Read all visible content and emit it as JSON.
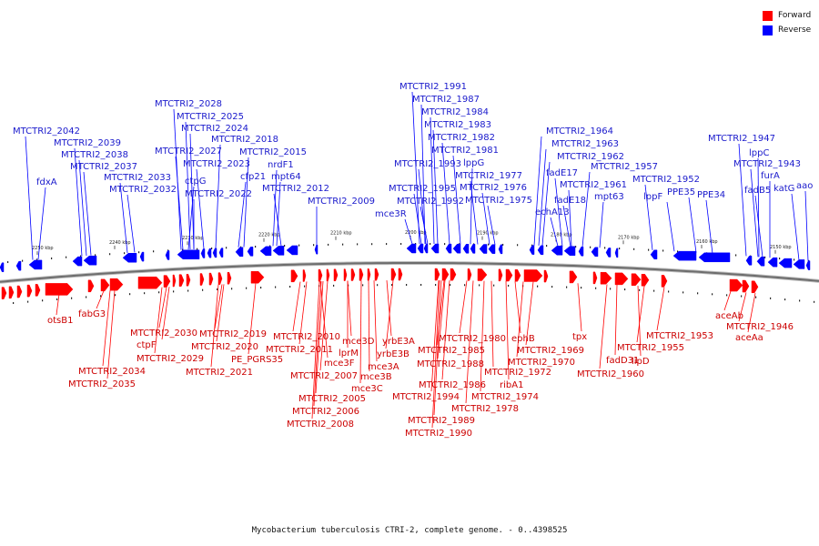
{
  "legend": {
    "forward": {
      "label": "Forward",
      "color": "#ff0000"
    },
    "reverse": {
      "label": "Reverse",
      "color": "#0000ff"
    }
  },
  "caption": "Mycobacterium tuberculosis CTRI-2, complete genome. - 0..4398525",
  "ticks": [
    "2250 kbp",
    "2240 kbp",
    "2230 kbp",
    "2220 kbp",
    "2210 kbp",
    "2200 kbp",
    "2190 kbp",
    "2180 kbp",
    "2170 kbp",
    "2160 kbp",
    "2150 kbp"
  ],
  "reverse_labels": [
    "MTCTRI2_2042",
    "fdxA",
    "MTCTRI2_2039",
    "MTCTRI2_2038",
    "MTCTRI2_2037",
    "MTCTRI2_2033",
    "MTCTRI2_2032",
    "MTCTRI2_2028",
    "MTCTRI2_2025",
    "MTCTRI2_2024",
    "MTCTRI2_2027",
    "ctpG",
    "MTCTRI2_2023",
    "MTCTRI2_2022",
    "MTCTRI2_2018",
    "cfp21",
    "MTCTRI2_2015",
    "nrdF1",
    "mpt64",
    "MTCTRI2_2012",
    "MTCTRI2_2009",
    "MTCTRI2_1991",
    "MTCTRI2_1987",
    "MTCTRI2_1984",
    "MTCTRI2_1983",
    "MTCTRI2_1982",
    "MTCTRI2_1981",
    "MTCTRI2_1993",
    "lppG",
    "MTCTRI2_1977",
    "MTCTRI2_1995",
    "MTCTRI2_1976",
    "MTCTRI2_1992",
    "MTCTRI2_1975",
    "mce3R",
    "MTCTRI2_1964",
    "MTCTRI2_1963",
    "MTCTRI2_1962",
    "fadE17",
    "MTCTRI2_1957",
    "MTCTRI2_1961",
    "fadE18",
    "mpt63",
    "echA13",
    "MTCTRI2_1952",
    "lppF",
    "PPE35",
    "PPE34",
    "MTCTRI2_1947",
    "lppC",
    "MTCTRI2_1943",
    "furA",
    "fadB5",
    "katG",
    "aao"
  ],
  "forward_labels": [
    "otsB1",
    "fabG3",
    "MTCTRI2_2034",
    "MTCTRI2_2035",
    "MTCTRI2_2030",
    "ctpF",
    "MTCTRI2_2029",
    "MTCTRI2_2019",
    "MTCTRI2_2020",
    "MTCTRI2_2021",
    "PE_PGRS35",
    "MTCTRI2_2010",
    "MTCTRI2_2011",
    "mce3F",
    "MTCTRI2_2007",
    "MTCTRI2_2005",
    "MTCTRI2_2006",
    "MTCTRI2_2008",
    "mce3D",
    "lprM",
    "mce3B",
    "mce3C",
    "mce3A",
    "yrbE3A",
    "yrbE3B",
    "MTCTRI2_1994",
    "MTCTRI2_1989",
    "MTCTRI2_1990",
    "MTCTRI2_1985",
    "MTCTRI2_1988",
    "MTCTRI2_1986",
    "MTCTRI2_1980",
    "MTCTRI2_1978",
    "ephB",
    "MTCTRI2_1972",
    "ribA1",
    "MTCTRI2_1974",
    "MTCTRI2_1970",
    "MTCTRI2_1969",
    "tpx",
    "MTCTRI2_1960",
    "fadD31",
    "lipD",
    "MTCTRI2_1955",
    "MTCTRI2_1953",
    "aceAb",
    "MTCTRI2_1946",
    "aceAa"
  ]
}
